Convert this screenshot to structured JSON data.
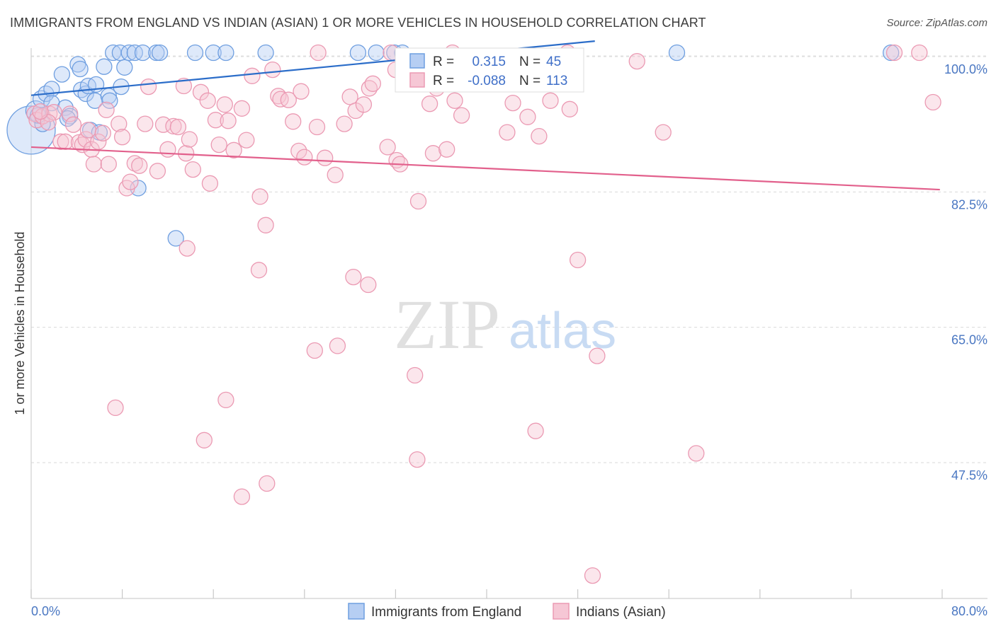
{
  "chart_data": {
    "type": "scatter",
    "title": "IMMIGRANTS FROM ENGLAND VS INDIAN (ASIAN) 1 OR MORE VEHICLES IN HOUSEHOLD CORRELATION CHART",
    "source": "Source: ZipAtlas.com",
    "xlabel": "",
    "ylabel": "1 or more Vehicles in Household",
    "xlim": [
      0,
      80
    ],
    "ylim": [
      32,
      102
    ],
    "x_tick_labels": [
      "0.0%",
      "80.0%"
    ],
    "y_ticks": [
      47.5,
      65.0,
      82.5,
      100.0
    ],
    "y_tick_labels": [
      "47.5%",
      "65.0%",
      "82.5%",
      "100.0%"
    ],
    "watermark": {
      "zip": "ZIP",
      "atlas": "atlas"
    },
    "stats_legend": [
      {
        "r_label": "R =",
        "r_value": "0.315",
        "n_label": "N =",
        "n_value": "45"
      },
      {
        "r_label": "R =",
        "r_value": "-0.088",
        "n_label": "N =",
        "n_value": "113"
      }
    ],
    "series": [
      {
        "name": "Immigrants from England",
        "color": "#6f9fe0",
        "fill": "#b6cef3",
        "line_color": "#2b6dc9",
        "trend": [
          [
            0,
            95.0
          ],
          [
            49.5,
            102.0
          ]
        ],
        "points": [
          [
            0.0,
            90.5
          ],
          [
            0.4,
            93.0
          ],
          [
            0.9,
            94.5
          ],
          [
            1.3,
            95.2
          ],
          [
            1.8,
            95.8
          ],
          [
            1.8,
            94.0
          ],
          [
            2.7,
            97.7
          ],
          [
            3.0,
            93.4
          ],
          [
            3.4,
            92.3
          ],
          [
            4.1,
            99.0
          ],
          [
            4.3,
            98.4
          ],
          [
            4.4,
            95.7
          ],
          [
            4.8,
            95.2
          ],
          [
            5.0,
            96.2
          ],
          [
            5.6,
            94.3
          ],
          [
            5.7,
            96.4
          ],
          [
            6.4,
            98.7
          ],
          [
            6.8,
            94.9
          ],
          [
            6.9,
            94.3
          ],
          [
            7.9,
            96.1
          ],
          [
            8.2,
            98.6
          ],
          [
            7.2,
            100.5
          ],
          [
            7.8,
            100.5
          ],
          [
            8.6,
            100.5
          ],
          [
            9.1,
            100.5
          ],
          [
            9.8,
            100.5
          ],
          [
            11.0,
            100.5
          ],
          [
            11.3,
            100.5
          ],
          [
            14.4,
            100.5
          ],
          [
            16.0,
            100.5
          ],
          [
            17.1,
            100.5
          ],
          [
            20.6,
            100.5
          ],
          [
            28.7,
            100.5
          ],
          [
            30.3,
            100.5
          ],
          [
            31.9,
            100.5
          ],
          [
            32.6,
            100.5
          ],
          [
            56.7,
            100.5
          ],
          [
            75.5,
            100.5
          ],
          [
            1.0,
            91.3
          ],
          [
            3.2,
            92.0
          ],
          [
            5.2,
            90.5
          ],
          [
            6.0,
            90.2
          ],
          [
            9.4,
            83.0
          ],
          [
            12.7,
            76.5
          ],
          [
            0.6,
            92.4
          ]
        ],
        "sizes": [
          34,
          14,
          12,
          11,
          11,
          11,
          11,
          11,
          11,
          11,
          11,
          11,
          11,
          11,
          11,
          11,
          11,
          11,
          11,
          11,
          11,
          11,
          11,
          11,
          11,
          11,
          11,
          11,
          11,
          11,
          11,
          11,
          11,
          11,
          11,
          11,
          11,
          11,
          11,
          11,
          11,
          11,
          11,
          11,
          11
        ]
      },
      {
        "name": "Indians (Asian)",
        "color": "#eb9ab3",
        "fill": "#f6c7d5",
        "line_color": "#e2608c",
        "trend": [
          [
            0,
            88.3
          ],
          [
            79.8,
            82.8
          ]
        ],
        "points": [
          [
            0.3,
            92.6
          ],
          [
            0.5,
            91.8
          ],
          [
            1.0,
            92.3
          ],
          [
            1.6,
            92.6
          ],
          [
            2.0,
            92.8
          ],
          [
            2.6,
            89.0
          ],
          [
            3.0,
            89.0
          ],
          [
            3.4,
            92.6
          ],
          [
            3.7,
            91.2
          ],
          [
            4.2,
            88.9
          ],
          [
            4.5,
            88.6
          ],
          [
            4.8,
            89.3
          ],
          [
            5.0,
            90.5
          ],
          [
            5.3,
            88.0
          ],
          [
            5.5,
            86.1
          ],
          [
            5.9,
            89.0
          ],
          [
            6.3,
            90.1
          ],
          [
            6.6,
            93.1
          ],
          [
            6.8,
            86.1
          ],
          [
            7.7,
            91.3
          ],
          [
            8.0,
            89.6
          ],
          [
            8.4,
            83.0
          ],
          [
            8.7,
            83.8
          ],
          [
            9.1,
            86.2
          ],
          [
            9.5,
            85.9
          ],
          [
            10.0,
            91.3
          ],
          [
            10.3,
            96.1
          ],
          [
            11.1,
            85.2
          ],
          [
            11.6,
            91.2
          ],
          [
            12.0,
            88.0
          ],
          [
            12.5,
            91.0
          ],
          [
            12.9,
            90.9
          ],
          [
            13.4,
            96.2
          ],
          [
            13.6,
            87.5
          ],
          [
            13.9,
            89.3
          ],
          [
            14.2,
            85.4
          ],
          [
            14.9,
            95.4
          ],
          [
            15.5,
            94.3
          ],
          [
            15.7,
            83.6
          ],
          [
            16.2,
            91.8
          ],
          [
            16.5,
            88.6
          ],
          [
            17.0,
            93.8
          ],
          [
            17.3,
            91.7
          ],
          [
            17.8,
            87.9
          ],
          [
            18.5,
            93.3
          ],
          [
            18.9,
            89.2
          ],
          [
            19.4,
            97.5
          ],
          [
            20.1,
            81.9
          ],
          [
            20.6,
            78.2
          ],
          [
            21.2,
            98.3
          ],
          [
            21.7,
            94.9
          ],
          [
            21.9,
            94.5
          ],
          [
            22.6,
            94.4
          ],
          [
            23.0,
            91.6
          ],
          [
            23.5,
            87.8
          ],
          [
            23.7,
            95.5
          ],
          [
            24.0,
            87.0
          ],
          [
            25.1,
            90.9
          ],
          [
            25.8,
            86.9
          ],
          [
            26.7,
            84.7
          ],
          [
            27.5,
            91.3
          ],
          [
            28.0,
            94.8
          ],
          [
            28.3,
            71.5
          ],
          [
            28.5,
            93.0
          ],
          [
            29.2,
            93.8
          ],
          [
            29.7,
            95.9
          ],
          [
            30.0,
            96.5
          ],
          [
            31.3,
            88.3
          ],
          [
            32.0,
            98.3
          ],
          [
            32.1,
            86.6
          ],
          [
            32.4,
            86.1
          ],
          [
            34.0,
            81.3
          ],
          [
            35.0,
            93.9
          ],
          [
            35.6,
            95.9
          ],
          [
            35.3,
            87.5
          ],
          [
            36.5,
            88.0
          ],
          [
            37.2,
            94.3
          ],
          [
            37.8,
            92.4
          ],
          [
            40.3,
            96.9
          ],
          [
            41.8,
            90.2
          ],
          [
            42.3,
            94.0
          ],
          [
            43.6,
            92.2
          ],
          [
            44.6,
            89.7
          ],
          [
            45.6,
            94.3
          ],
          [
            47.3,
            93.2
          ],
          [
            48.0,
            73.7
          ],
          [
            49.7,
            61.3
          ],
          [
            53.2,
            99.4
          ],
          [
            55.5,
            90.2
          ],
          [
            75.8,
            100.5
          ],
          [
            78.0,
            100.5
          ],
          [
            79.2,
            94.1
          ],
          [
            24.9,
            62.0
          ],
          [
            17.1,
            55.6
          ],
          [
            15.2,
            50.4
          ],
          [
            18.5,
            43.1
          ],
          [
            26.9,
            62.6
          ],
          [
            29.6,
            70.5
          ],
          [
            33.7,
            58.8
          ],
          [
            20.0,
            72.4
          ],
          [
            13.7,
            75.2
          ],
          [
            7.4,
            54.6
          ],
          [
            44.3,
            51.6
          ],
          [
            58.4,
            48.7
          ],
          [
            33.9,
            47.9
          ],
          [
            20.7,
            44.8
          ],
          [
            49.3,
            32.9
          ],
          [
            25.2,
            100.5
          ],
          [
            31.6,
            100.5
          ],
          [
            37.0,
            100.5
          ],
          [
            47.1,
            100.5
          ],
          [
            1.5,
            91.5
          ],
          [
            0.8,
            92.9
          ]
        ],
        "sizes": [
          11,
          11,
          11,
          11,
          11,
          11,
          11,
          11,
          11,
          11,
          11,
          11,
          11,
          11,
          11,
          11,
          11,
          11,
          11,
          11,
          11,
          11,
          11,
          11,
          11,
          11,
          11,
          11,
          11,
          11,
          11,
          11,
          11,
          11,
          11,
          11,
          11,
          11,
          11,
          11,
          11,
          11,
          11,
          11,
          11,
          11,
          11,
          11,
          11,
          11,
          11,
          11,
          11,
          11,
          11,
          11,
          11,
          11,
          11,
          11,
          11,
          11,
          11,
          11,
          11,
          11,
          11,
          11,
          11,
          11,
          11,
          11,
          11,
          11,
          11,
          11,
          11,
          11,
          11,
          11,
          11,
          11,
          11,
          11,
          11,
          11,
          11,
          11,
          11,
          11,
          11,
          11,
          11,
          11,
          11,
          11,
          11,
          11,
          11,
          11,
          11,
          11,
          11,
          11,
          11,
          11,
          11,
          11,
          11,
          11,
          11,
          11,
          11
        ]
      }
    ]
  }
}
